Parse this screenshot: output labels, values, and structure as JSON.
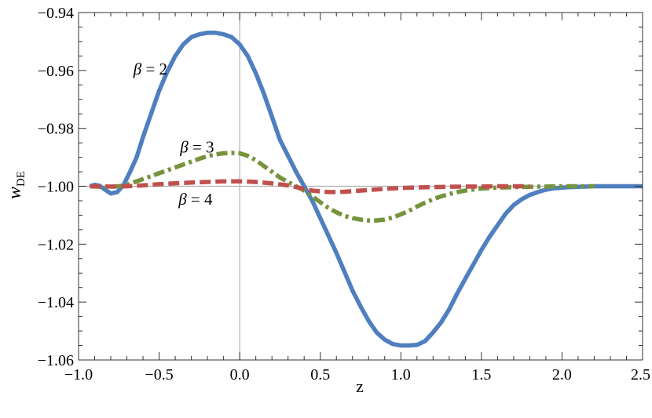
{
  "chart_data": {
    "type": "line",
    "title": "",
    "xlabel": "z",
    "ylabel": {
      "main": "w",
      "sub": "DE"
    },
    "xlim": [
      -1.0,
      2.5
    ],
    "ylim": [
      -1.06,
      -0.94
    ],
    "grid": false,
    "frame": true,
    "x_ticks": [
      -1.0,
      -0.5,
      0.0,
      0.5,
      1.0,
      1.5,
      2.0,
      2.5
    ],
    "x_tick_labels": [
      "−1.0",
      "−0.5",
      "0.0",
      "0.5",
      "1.0",
      "1.5",
      "2.0",
      "2.5"
    ],
    "y_ticks": [
      -0.94,
      -0.96,
      -0.98,
      -1.0,
      -1.02,
      -1.04,
      -1.06
    ],
    "y_tick_labels": [
      "−0.94",
      "−0.96",
      "−0.98",
      "−1.00",
      "−1.02",
      "−1.04",
      "−1.06"
    ],
    "reference_lines": {
      "x": 0.0,
      "y": -1.0,
      "color": "#b0b0b0"
    },
    "series": [
      {
        "color": "#4f7fbf",
        "style": "solid",
        "x": [
          -0.93,
          -0.9,
          -0.87,
          -0.84,
          -0.8,
          -0.76,
          -0.72,
          -0.68,
          -0.64,
          -0.6,
          -0.55,
          -0.5,
          -0.45,
          -0.4,
          -0.35,
          -0.3,
          -0.25,
          -0.2,
          -0.15,
          -0.1,
          -0.05,
          0.0,
          0.05,
          0.1,
          0.15,
          0.2,
          0.25,
          0.3,
          0.35,
          0.4,
          0.45,
          0.5,
          0.55,
          0.6,
          0.65,
          0.7,
          0.75,
          0.8,
          0.85,
          0.9,
          0.95,
          1.0,
          1.05,
          1.1,
          1.15,
          1.2,
          1.25,
          1.3,
          1.35,
          1.4,
          1.45,
          1.5,
          1.55,
          1.6,
          1.65,
          1.7,
          1.75,
          1.8,
          1.85,
          1.9,
          1.95,
          2.0,
          2.05,
          2.1,
          2.15,
          2.2,
          2.3,
          2.4,
          2.5
        ],
        "y": [
          -1.0,
          -0.9995,
          -0.9998,
          -1.001,
          -1.0025,
          -1.002,
          -0.9995,
          -0.995,
          -0.99,
          -0.983,
          -0.975,
          -0.967,
          -0.9605,
          -0.955,
          -0.951,
          -0.9485,
          -0.9475,
          -0.947,
          -0.947,
          -0.9475,
          -0.9485,
          -0.951,
          -0.955,
          -0.961,
          -0.968,
          -0.976,
          -0.984,
          -0.9895,
          -0.995,
          -1.0,
          -1.005,
          -1.011,
          -1.017,
          -1.023,
          -1.0295,
          -1.036,
          -1.0415,
          -1.0465,
          -1.0505,
          -1.053,
          -1.0545,
          -1.055,
          -1.055,
          -1.0548,
          -1.0535,
          -1.0505,
          -1.047,
          -1.0425,
          -1.037,
          -1.032,
          -1.027,
          -1.022,
          -1.0175,
          -1.0135,
          -1.0095,
          -1.0065,
          -1.0045,
          -1.003,
          -1.002,
          -1.0012,
          -1.0007,
          -1.0005,
          -1.0003,
          -1.0002,
          -1.0001,
          -1.0,
          -1.0,
          -1.0,
          -1.0
        ]
      },
      {
        "color": "#76933c",
        "style": "dashdot",
        "x": [
          -0.93,
          -0.85,
          -0.8,
          -0.75,
          -0.7,
          -0.65,
          -0.6,
          -0.55,
          -0.5,
          -0.45,
          -0.4,
          -0.35,
          -0.3,
          -0.25,
          -0.2,
          -0.15,
          -0.1,
          -0.05,
          0.0,
          0.05,
          0.1,
          0.15,
          0.2,
          0.25,
          0.3,
          0.35,
          0.4,
          0.45,
          0.5,
          0.55,
          0.6,
          0.65,
          0.7,
          0.75,
          0.8,
          0.85,
          0.9,
          0.95,
          1.0,
          1.05,
          1.1,
          1.15,
          1.2,
          1.25,
          1.3,
          1.35,
          1.4,
          1.45,
          1.5,
          1.55,
          1.6,
          1.7,
          1.8,
          1.9,
          2.0,
          2.1,
          2.2
        ],
        "y": [
          -1.0,
          -1.0002,
          -1.0002,
          -1.0,
          -0.9995,
          -0.9985,
          -0.9975,
          -0.9965,
          -0.9955,
          -0.9945,
          -0.9935,
          -0.9925,
          -0.9915,
          -0.9905,
          -0.9896,
          -0.989,
          -0.9886,
          -0.9885,
          -0.9886,
          -0.9895,
          -0.991,
          -0.993,
          -0.995,
          -0.997,
          -0.9985,
          -1.0,
          -1.0015,
          -1.0035,
          -1.0055,
          -1.0075,
          -1.009,
          -1.0102,
          -1.011,
          -1.0115,
          -1.0118,
          -1.0118,
          -1.0115,
          -1.0108,
          -1.0097,
          -1.0085,
          -1.007,
          -1.0057,
          -1.0045,
          -1.0035,
          -1.0027,
          -1.002,
          -1.0015,
          -1.0011,
          -1.0008,
          -1.0006,
          -1.0005,
          -1.0003,
          -1.0002,
          -1.0001,
          -1.0,
          -1.0,
          -1.0
        ]
      },
      {
        "color": "#c0504d",
        "style": "dashed",
        "x": [
          -0.93,
          -0.8,
          -0.7,
          -0.6,
          -0.5,
          -0.4,
          -0.3,
          -0.2,
          -0.1,
          0.0,
          0.1,
          0.2,
          0.3,
          0.35,
          0.4,
          0.45,
          0.5,
          0.55,
          0.6,
          0.65,
          0.7,
          0.75,
          0.8,
          0.9,
          1.0,
          1.1,
          1.2,
          1.3,
          1.4,
          1.5,
          1.6,
          1.7,
          1.8
        ],
        "y": [
          -1.0,
          -1.0001,
          -1.0,
          -0.9997,
          -0.9993,
          -0.999,
          -0.9987,
          -0.9985,
          -0.9983,
          -0.9983,
          -0.9985,
          -0.999,
          -0.9997,
          -1.0003,
          -1.001,
          -1.0015,
          -1.0018,
          -1.002,
          -1.002,
          -1.0019,
          -1.0017,
          -1.0015,
          -1.0013,
          -1.0009,
          -1.0006,
          -1.0004,
          -1.0003,
          -1.0002,
          -1.0001,
          -1.0001,
          -1.0,
          -1.0,
          -1.0
        ]
      }
    ],
    "annotations": [
      {
        "symbol": "β",
        "text": " = 2",
        "x": -0.66,
        "y": -0.9595
      },
      {
        "symbol": "β",
        "text": " = 3",
        "x": -0.37,
        "y": -0.9865
      },
      {
        "symbol": "β",
        "text": " = 4",
        "x": -0.38,
        "y": -1.0045
      }
    ]
  }
}
